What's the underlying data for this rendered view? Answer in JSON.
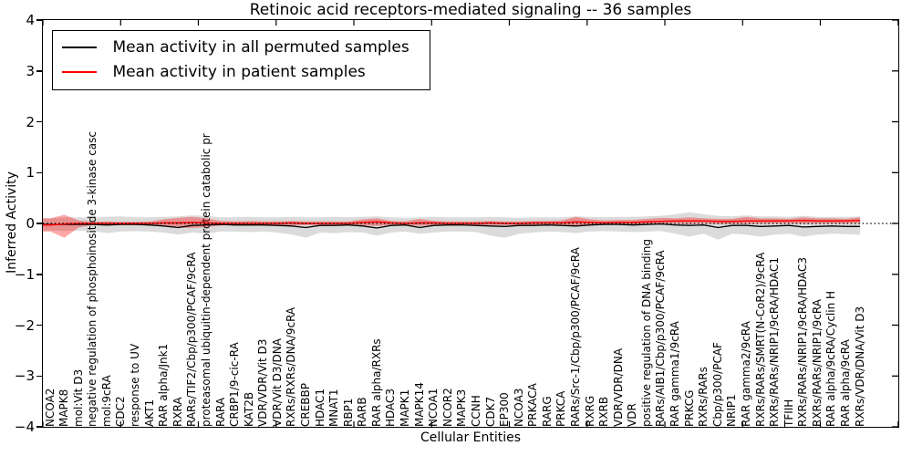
{
  "chart_data": {
    "type": "line",
    "title": "Retinoic acid receptors-mediated signaling -- 36 samples",
    "xlabel": "Cellular Entities",
    "ylabel": "Inferred Activity",
    "ylim": [
      -4,
      4
    ],
    "yticks": [
      4,
      3,
      2,
      1,
      0,
      -1,
      -2,
      -3,
      -4
    ],
    "grid": false,
    "legend_position": "upper left",
    "zero_line": {
      "style": "dotted",
      "color": "#000000"
    },
    "categories": [
      "NCOA2",
      "MAPK8",
      "mol:Vit D3",
      "negative regulation of phosphoinositide 3-kinase casc",
      "mol:9cRA",
      "CDC2",
      "response to UV",
      "AKT1",
      "RAR alpha/Jnk1",
      "RXRA",
      "RARs/TIF2/Cbp/p300/PCAF/9cRA",
      "proteasomal ubiquitin-dependent protein catabolic pr",
      "RARA",
      "CRBP1/9-cic-RA",
      "KAT2B",
      "VDR/VDR/Vit D3",
      "VDR/Vit D3/DNA",
      "RXRs/RXRs/DNA/9cRA",
      "CREBBP",
      "HDAC1",
      "MNAT1",
      "RBP1",
      "RARB",
      "RAR alpha/RXRs",
      "HDAC3",
      "MAPK1",
      "MAPK14",
      "NCOA1",
      "NCOR2",
      "MAPK3",
      "CCNH",
      "CDK7",
      "EP300",
      "NCOA3",
      "PRKACA",
      "RARG",
      "PRKCA",
      "RARs/Src-1/Cbp/p300/PCAF/9cRA",
      "RXRG",
      "RXRB",
      "VDR/VDR/DNA",
      "VDR",
      "positive regulation of DNA binding",
      "RARs/AIB1/Cbp/p300/PCAF/9cRA",
      "RAR gamma1/9cRA",
      "PRKCG",
      "RXRs/RARs",
      "Cbp/p300/PCAF",
      "NRIP1",
      "RAR gamma2/9cRA",
      "RXRs/RARs/SMRT(N-CoR2)/9cRA",
      "RXRs/RARs/NRIP1/9cRA/HDAC1",
      "TFIIH",
      "RXRs/RARs/NRIP1/9cRA/HDAC3",
      "RXRs/RARs/NRIP1/9cRA",
      "RAR alpha/9cRA/Cyclin H",
      "RAR alpha/9cRA",
      "RXRs/VDR/DNA/Vit D3"
    ],
    "series": [
      {
        "name": "Mean activity in all permuted samples",
        "color": "#000000",
        "values": [
          -0.02,
          -0.02,
          -0.02,
          -0.02,
          -0.03,
          -0.02,
          -0.02,
          -0.03,
          -0.05,
          -0.08,
          -0.04,
          -0.03,
          -0.02,
          -0.03,
          -0.03,
          -0.03,
          -0.04,
          -0.05,
          -0.08,
          -0.04,
          -0.04,
          -0.03,
          -0.05,
          -0.09,
          -0.04,
          -0.03,
          -0.08,
          -0.04,
          -0.03,
          -0.03,
          -0.04,
          -0.05,
          -0.06,
          -0.04,
          -0.04,
          -0.03,
          -0.04,
          -0.05,
          -0.03,
          -0.02,
          -0.02,
          -0.03,
          -0.02,
          -0.01,
          -0.03,
          -0.04,
          -0.03,
          -0.08,
          -0.04,
          -0.04,
          -0.06,
          -0.05,
          -0.04,
          -0.07,
          -0.06,
          -0.05,
          -0.06,
          -0.06
        ]
      },
      {
        "name": "Mean activity in patient samples",
        "color": "#ff0000",
        "values": [
          -0.03,
          -0.01,
          0,
          0,
          0,
          0,
          0,
          0,
          0.01,
          0.01,
          0.02,
          0.01,
          0,
          0,
          0,
          0,
          0,
          0.01,
          0,
          0,
          0,
          0,
          0.02,
          0.03,
          0.01,
          0,
          0.01,
          0.01,
          0,
          0,
          0,
          0.01,
          0,
          0,
          0.01,
          0.01,
          0.01,
          0.03,
          0.02,
          0.01,
          0.02,
          0.02,
          0.03,
          0.04,
          0.05,
          0.05,
          0.05,
          0.04,
          0.04,
          0.05,
          0.05,
          0.05,
          0.05,
          0.06,
          0.05,
          0.05,
          0.05,
          0.06
        ]
      }
    ],
    "bands": [
      {
        "name": "permuted-samples-std-band",
        "color": "rgba(0,0,0,0.14)",
        "upper": [
          0.1,
          0.12,
          0.12,
          0.11,
          0.13,
          0.14,
          0.12,
          0.12,
          0.13,
          0.14,
          0.16,
          0.15,
          0.12,
          0.12,
          0.13,
          0.12,
          0.12,
          0.13,
          0.12,
          0.12,
          0.13,
          0.12,
          0.13,
          0.14,
          0.12,
          0.11,
          0.12,
          0.13,
          0.12,
          0.12,
          0.12,
          0.13,
          0.12,
          0.11,
          0.12,
          0.12,
          0.12,
          0.14,
          0.13,
          0.12,
          0.13,
          0.13,
          0.14,
          0.15,
          0.18,
          0.22,
          0.18,
          0.15,
          0.14,
          0.16,
          0.14,
          0.14,
          0.13,
          0.15,
          0.13,
          0.13,
          0.13,
          0.14
        ],
        "lower": [
          -0.14,
          -0.15,
          -0.14,
          -0.15,
          -0.19,
          -0.16,
          -0.15,
          -0.16,
          -0.18,
          -0.22,
          -0.18,
          -0.2,
          -0.16,
          -0.16,
          -0.17,
          -0.16,
          -0.18,
          -0.22,
          -0.28,
          -0.18,
          -0.19,
          -0.17,
          -0.18,
          -0.24,
          -0.18,
          -0.16,
          -0.2,
          -0.18,
          -0.16,
          -0.16,
          -0.17,
          -0.24,
          -0.28,
          -0.2,
          -0.18,
          -0.16,
          -0.17,
          -0.19,
          -0.16,
          -0.15,
          -0.16,
          -0.17,
          -0.16,
          -0.15,
          -0.2,
          -0.26,
          -0.2,
          -0.32,
          -0.2,
          -0.22,
          -0.26,
          -0.22,
          -0.2,
          -0.26,
          -0.22,
          -0.2,
          -0.21,
          -0.22
        ]
      },
      {
        "name": "patient-samples-std-band",
        "color": "rgba(255,0,0,0.34)",
        "upper": [
          0.1,
          0.17,
          0.06,
          0.03,
          0.04,
          0.03,
          0.03,
          0.04,
          0.08,
          0.11,
          0.13,
          0.1,
          0.05,
          0.04,
          0.05,
          0.04,
          0.04,
          0.05,
          0.04,
          0.04,
          0.04,
          0.04,
          0.08,
          0.1,
          0.05,
          0.04,
          0.09,
          0.05,
          0.04,
          0.04,
          0.04,
          0.05,
          0.04,
          0.04,
          0.05,
          0.05,
          0.06,
          0.13,
          0.08,
          0.06,
          0.07,
          0.07,
          0.09,
          0.11,
          0.1,
          0.12,
          0.1,
          0.09,
          0.09,
          0.13,
          0.1,
          0.1,
          0.09,
          0.12,
          0.1,
          0.1,
          0.09,
          0.12
        ],
        "lower": [
          -0.16,
          -0.28,
          -0.08,
          -0.03,
          -0.04,
          -0.03,
          -0.03,
          -0.04,
          -0.06,
          -0.08,
          -0.09,
          -0.07,
          -0.04,
          -0.03,
          -0.04,
          -0.03,
          -0.03,
          -0.04,
          -0.03,
          -0.03,
          -0.03,
          -0.03,
          -0.04,
          -0.05,
          -0.03,
          -0.03,
          -0.05,
          -0.03,
          -0.03,
          -0.03,
          -0.03,
          -0.03,
          -0.03,
          -0.03,
          -0.03,
          -0.03,
          -0.03,
          -0.06,
          -0.04,
          -0.03,
          -0.02,
          -0.02,
          -0.01,
          0,
          0,
          -0.01,
          0,
          -0.01,
          -0.01,
          -0.01,
          0,
          0,
          0,
          0,
          0,
          0,
          0,
          0.01
        ]
      }
    ]
  }
}
